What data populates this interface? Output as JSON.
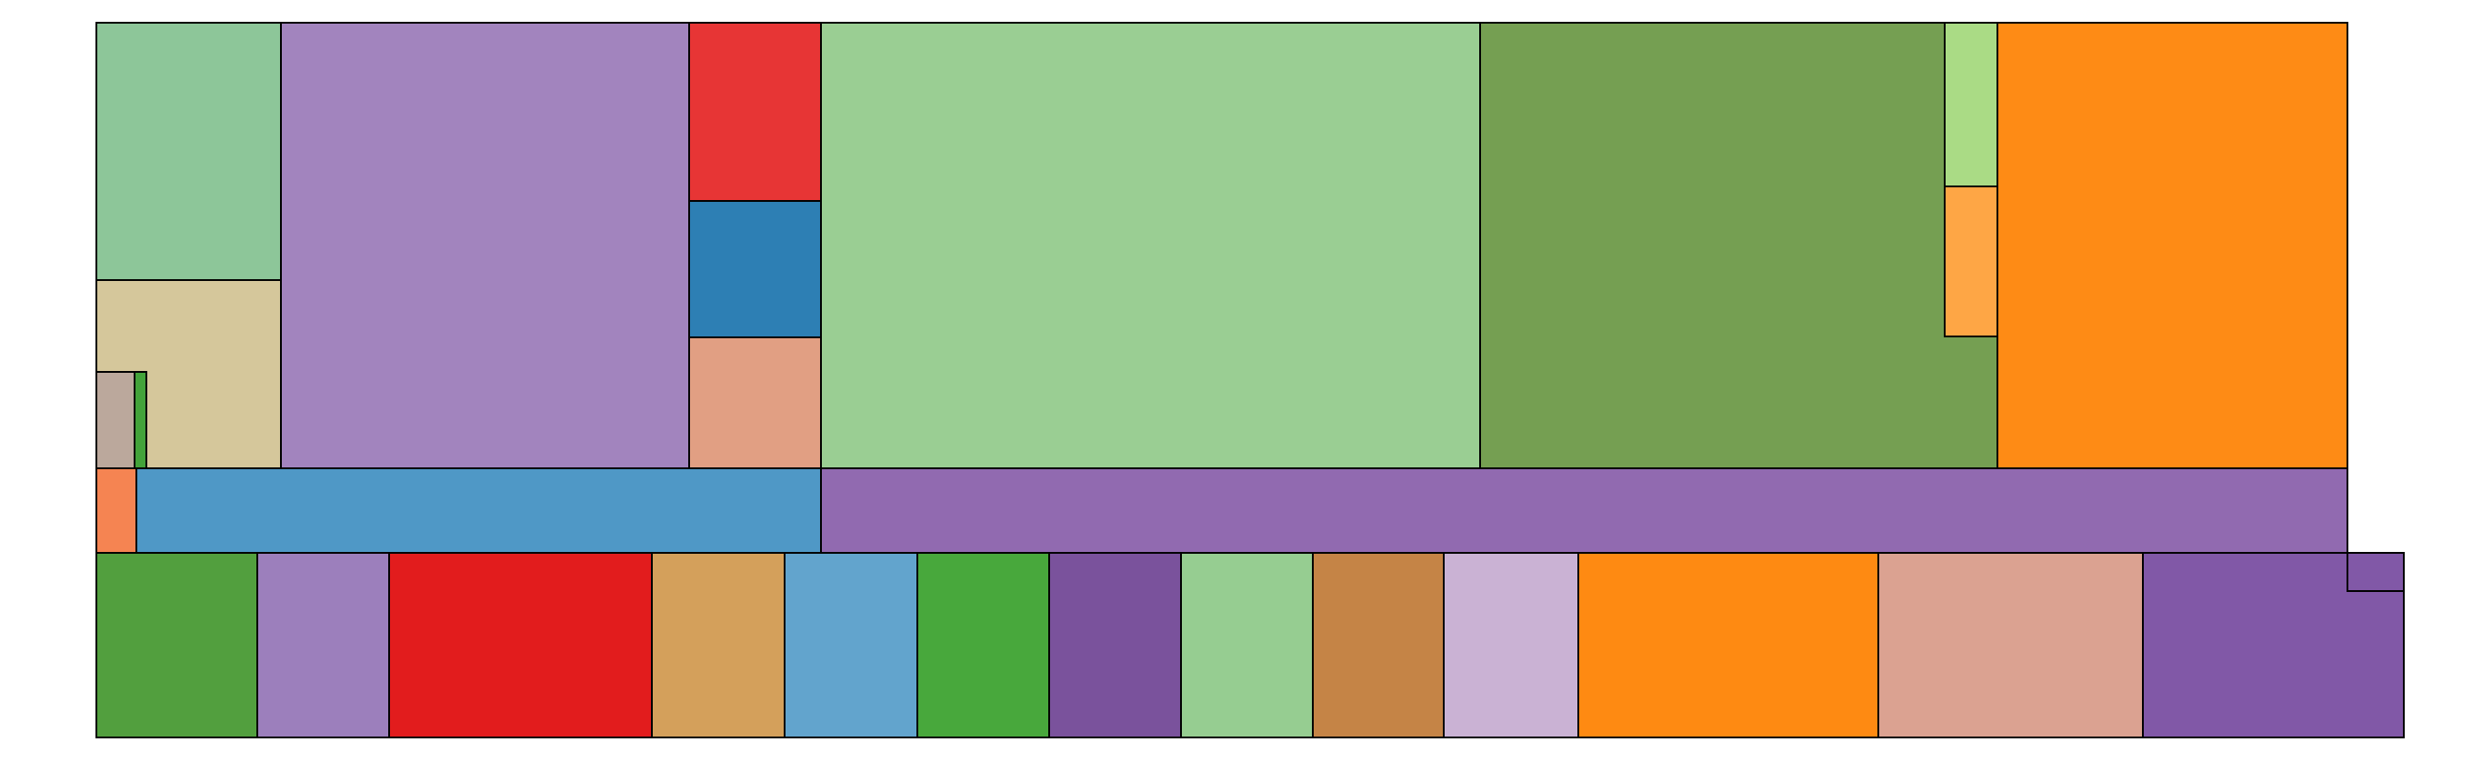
{
  "diagram": {
    "type": "rectangular-tiling",
    "labels_printed": false,
    "stroke_color": "#000000",
    "background": "#ffffff"
  },
  "tiles": [
    {
      "color": "#8dc699"
    },
    {
      "color": "#d5c79b"
    },
    {
      "color": "#bba89c"
    },
    {
      "color": "#43a33a"
    },
    {
      "color": "#a284be"
    },
    {
      "color": "#e73535"
    },
    {
      "color": "#2d7fb4"
    },
    {
      "color": "#e19f83"
    },
    {
      "color": "#9ace93"
    },
    {
      "color": "#759f52"
    },
    {
      "color": "#aadb85"
    },
    {
      "color": "#fea645"
    },
    {
      "color": "#fe8b15"
    },
    {
      "color": "#f58452"
    },
    {
      "color": "#4f98c6"
    },
    {
      "color": "#916ab0"
    },
    {
      "color": "#529f3e"
    },
    {
      "color": "#9c7fbc"
    },
    {
      "color": "#e21c1d"
    },
    {
      "color": "#d4a05b"
    },
    {
      "color": "#62a4cd"
    },
    {
      "color": "#48a83c"
    },
    {
      "color": "#7a529c"
    },
    {
      "color": "#96cd91"
    },
    {
      "color": "#c58446"
    },
    {
      "color": "#cab2d4"
    },
    {
      "color": "#fe8a12"
    },
    {
      "color": "#dba291"
    },
    {
      "color": "#8158a7"
    }
  ]
}
